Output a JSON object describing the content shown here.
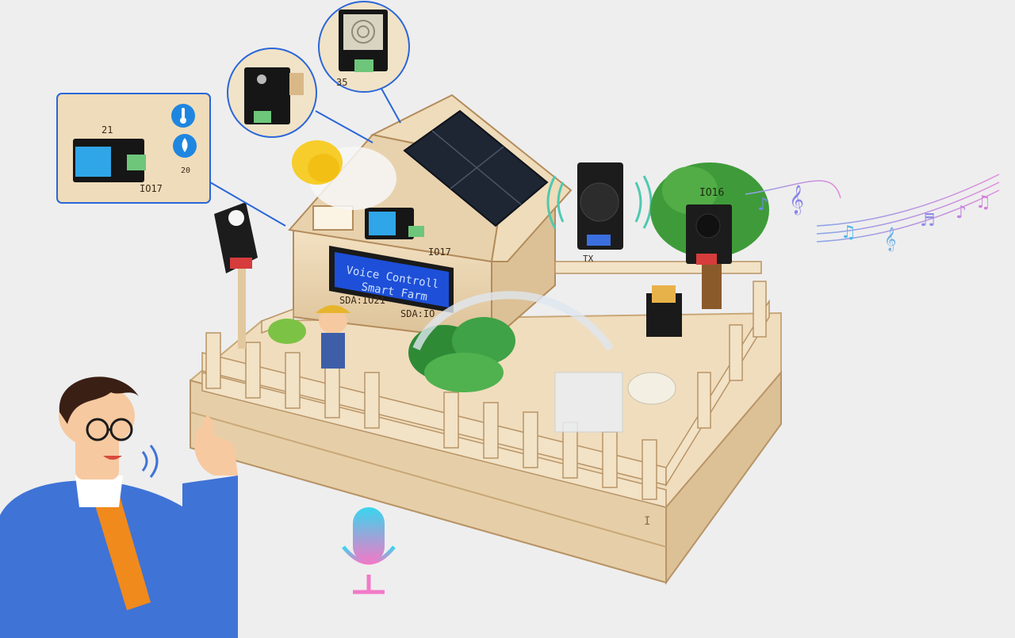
{
  "lcd": {
    "line1": "Voice Controll",
    "line2": "Smart Farm"
  },
  "pin_labels": {
    "house_io": "IO17",
    "sda": "SDA:IO21",
    "sda_partial": "SDA:IO",
    "tree_io": "IO16",
    "speaker_tx": "TX",
    "inset_io": "IO17",
    "inset_21": "21",
    "inset_20": "20",
    "sensor_35": "35",
    "ground_mark": "I"
  },
  "colors": {
    "background": "#eeeeef",
    "wood": "#eed9b6",
    "wood_dark": "#d8bd91",
    "lcd_blue": "#1d4fd8",
    "lcd_text": "#cfe0ff",
    "sensor_blue": "#2fa6e8",
    "jacket_blue": "#3f73d6",
    "tie_orange": "#f08a1c",
    "mic_gradient_start": "#38d6ee",
    "mic_gradient_end": "#f279c7",
    "inset_badge_blue": "#1f86e0",
    "tree_green": "#3f9b3a"
  },
  "icons": [
    "thermometer-icon",
    "humidity-icon",
    "microphone-icon",
    "music-notes-icon",
    "sound-wave-icon"
  ]
}
